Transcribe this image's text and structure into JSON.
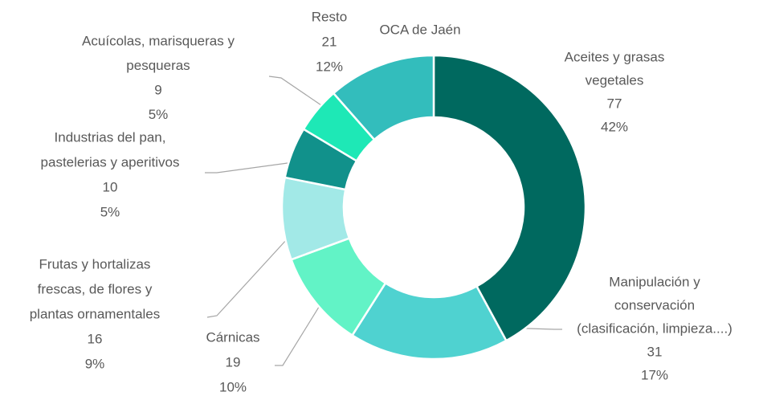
{
  "chart_data": {
    "type": "donut",
    "title": "OCA de Jaén",
    "categories": [
      [
        "Aceites y grasas",
        "vegetales"
      ],
      [
        "Manipulación y",
        "conservación",
        "(clasificación, limpieza....)"
      ],
      [
        "Cárnicas"
      ],
      [
        "Frutas y hortalizas",
        "frescas, de flores y",
        "plantas ornamentales"
      ],
      [
        "Industrias del pan,",
        "pastelerias y aperitivos"
      ],
      [
        "Acuícolas, marisqueras y",
        "pesqueras"
      ],
      [
        "Resto"
      ]
    ],
    "values": [
      77,
      31,
      19,
      16,
      10,
      9,
      21
    ],
    "percent_labels": [
      "42%",
      "17%",
      "10%",
      "9%",
      "5%",
      "5%",
      "12%"
    ],
    "colors": [
      "#00695f",
      "#4fd2d0",
      "#62f3c6",
      "#a2e9e7",
      "#11918b",
      "#1ee8b6",
      "#33bdbc"
    ]
  }
}
